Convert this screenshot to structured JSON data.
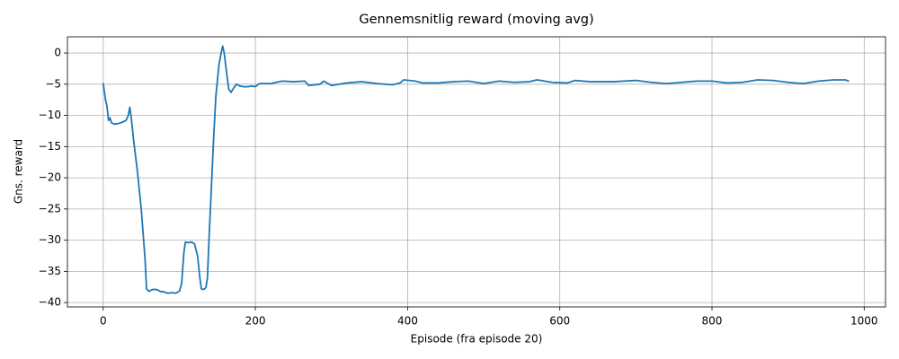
{
  "chart_data": {
    "type": "line",
    "title": "Gennemsnitlig reward (moving avg)",
    "x_label": "Episode (fra episode 20)",
    "y_label": "Gns. reward",
    "color": "#1f77b4",
    "grid": true,
    "xlim": [
      -47,
      1028
    ],
    "ylim": [
      -40.7,
      2.6
    ],
    "xticks": [
      0,
      200,
      400,
      600,
      800,
      1000
    ],
    "yticks": [
      {
        "value": -40,
        "label": "−40"
      },
      {
        "value": -35,
        "label": "−35"
      },
      {
        "value": -30,
        "label": "−30"
      },
      {
        "value": -25,
        "label": "−25"
      },
      {
        "value": -20,
        "label": "−20"
      },
      {
        "value": -15,
        "label": "−15"
      },
      {
        "value": -10,
        "label": "−10"
      },
      {
        "value": -5,
        "label": "−5"
      },
      0
    ],
    "x": [
      0,
      3,
      5,
      7,
      9,
      11,
      15,
      20,
      25,
      30,
      33,
      35,
      37,
      40,
      45,
      50,
      55,
      57,
      60,
      65,
      70,
      75,
      80,
      85,
      90,
      95,
      100,
      103,
      106,
      108,
      112,
      116,
      120,
      124,
      127,
      129,
      132,
      135,
      137,
      139,
      142,
      145,
      148,
      152,
      155,
      157,
      159,
      162,
      165,
      168,
      171,
      175,
      180,
      185,
      190,
      195,
      200,
      205,
      220,
      235,
      250,
      265,
      270,
      285,
      290,
      300,
      320,
      340,
      360,
      380,
      390,
      395,
      410,
      420,
      440,
      460,
      480,
      500,
      520,
      540,
      560,
      570,
      590,
      610,
      620,
      640,
      670,
      700,
      720,
      740,
      760,
      780,
      800,
      820,
      840,
      860,
      880,
      900,
      920,
      940,
      960,
      975,
      980
    ],
    "values": [
      -4.8,
      -7.5,
      -8.5,
      -10.8,
      -10.4,
      -11.2,
      -11.4,
      -11.3,
      -11.1,
      -10.8,
      -10,
      -8.7,
      -10.5,
      -14,
      -19,
      -25,
      -33,
      -37.8,
      -38.2,
      -37.9,
      -37.9,
      -38.2,
      -38.3,
      -38.5,
      -38.4,
      -38.5,
      -38.2,
      -37,
      -32,
      -30.3,
      -30.4,
      -30.3,
      -30.6,
      -32.5,
      -36,
      -37.8,
      -37.9,
      -37.6,
      -36,
      -30,
      -22,
      -14,
      -7,
      -2,
      0,
      1.1,
      0,
      -3,
      -5.8,
      -6.3,
      -5.7,
      -5,
      -5.3,
      -5.4,
      -5.4,
      -5.3,
      -5.4,
      -4.9,
      -4.9,
      -4.5,
      -4.6,
      -4.5,
      -5.2,
      -5.0,
      -4.5,
      -5.2,
      -4.8,
      -4.6,
      -4.9,
      -5.1,
      -4.8,
      -4.3,
      -4.5,
      -4.8,
      -4.8,
      -4.6,
      -4.5,
      -4.9,
      -4.5,
      -4.7,
      -4.6,
      -4.3,
      -4.7,
      -4.8,
      -4.4,
      -4.6,
      -4.6,
      -4.4,
      -4.7,
      -4.9,
      -4.7,
      -4.5,
      -4.5,
      -4.8,
      -4.7,
      -4.3,
      -4.4,
      -4.7,
      -4.9,
      -4.5,
      -4.3,
      -4.3,
      -4.5
    ]
  }
}
